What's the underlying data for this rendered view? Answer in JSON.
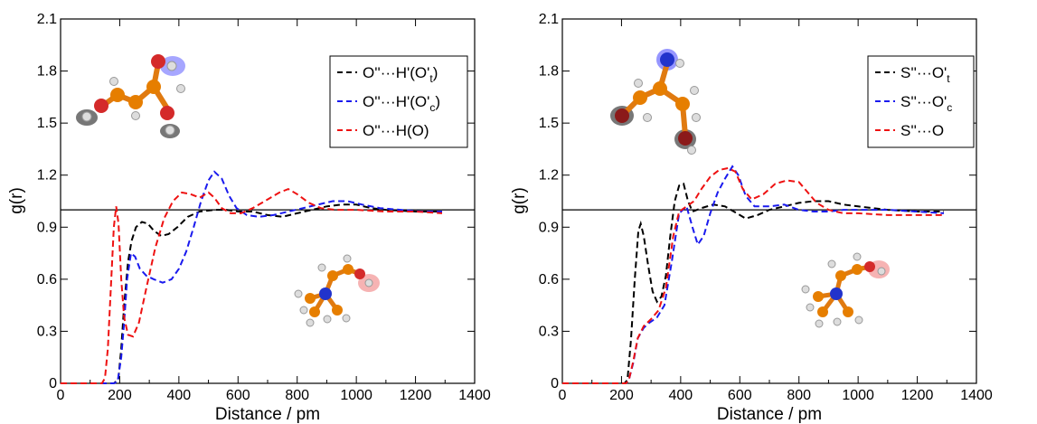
{
  "chart_data": [
    {
      "type": "line",
      "xlabel": "Distance / pm",
      "ylabel": "g(r)",
      "xlim": [
        0,
        1400
      ],
      "ylim": [
        0,
        2.1
      ],
      "xticks": [
        "0",
        "200",
        "400",
        "600",
        "800",
        "1000",
        "1200",
        "1400"
      ],
      "yticks": [
        "0",
        "0.3",
        "0.6",
        "0.9",
        "1.2",
        "1.5",
        "1.8",
        "2.1"
      ],
      "reference_line": 1.0,
      "legend_position": "top-right",
      "series": [
        {
          "name": "O''···H'(O't)",
          "legend": {
            "main": "O''···H'(O'",
            "sub": "t",
            "tail": ")"
          },
          "color": "#000000",
          "dash": "dashed",
          "points": [
            [
              0,
              0
            ],
            [
              180,
              0
            ],
            [
              195,
              0.02
            ],
            [
              205,
              0.2
            ],
            [
              215,
              0.45
            ],
            [
              228,
              0.7
            ],
            [
              240,
              0.82
            ],
            [
              255,
              0.9
            ],
            [
              275,
              0.93
            ],
            [
              295,
              0.92
            ],
            [
              315,
              0.88
            ],
            [
              340,
              0.85
            ],
            [
              365,
              0.86
            ],
            [
              395,
              0.9
            ],
            [
              430,
              0.96
            ],
            [
              470,
              0.99
            ],
            [
              520,
              1.0
            ],
            [
              560,
              1.0
            ],
            [
              600,
              0.99
            ],
            [
              650,
              0.99
            ],
            [
              700,
              0.97
            ],
            [
              750,
              0.96
            ],
            [
              800,
              0.98
            ],
            [
              850,
              1.0
            ],
            [
              900,
              1.02
            ],
            [
              950,
              1.03
            ],
            [
              1000,
              1.03
            ],
            [
              1050,
              1.01
            ],
            [
              1100,
              1.0
            ],
            [
              1200,
              0.99
            ],
            [
              1290,
              0.99
            ]
          ]
        },
        {
          "name": "O''···H'(O'c)",
          "legend": {
            "main": "O''···H'(O'",
            "sub": "c",
            "tail": ")"
          },
          "color": "#1a1aee",
          "dash": "dashed",
          "points": [
            [
              0,
              0
            ],
            [
              180,
              0
            ],
            [
              193,
              0.01
            ],
            [
              205,
              0.15
            ],
            [
              215,
              0.35
            ],
            [
              225,
              0.6
            ],
            [
              238,
              0.75
            ],
            [
              252,
              0.73
            ],
            [
              268,
              0.66
            ],
            [
              290,
              0.62
            ],
            [
              315,
              0.6
            ],
            [
              345,
              0.58
            ],
            [
              375,
              0.6
            ],
            [
              400,
              0.66
            ],
            [
              425,
              0.76
            ],
            [
              450,
              0.9
            ],
            [
              475,
              1.05
            ],
            [
              500,
              1.17
            ],
            [
              520,
              1.22
            ],
            [
              545,
              1.18
            ],
            [
              570,
              1.08
            ],
            [
              595,
              1.01
            ],
            [
              630,
              0.97
            ],
            [
              670,
              0.96
            ],
            [
              720,
              0.97
            ],
            [
              770,
              0.99
            ],
            [
              820,
              1.01
            ],
            [
              870,
              1.03
            ],
            [
              920,
              1.05
            ],
            [
              970,
              1.05
            ],
            [
              1020,
              1.03
            ],
            [
              1080,
              1.01
            ],
            [
              1150,
              1.0
            ],
            [
              1220,
              0.99
            ],
            [
              1290,
              0.99
            ]
          ]
        },
        {
          "name": "O''···H(O)",
          "legend": {
            "main": "O''···H(O)",
            "sub": "",
            "tail": ""
          },
          "color": "#ee1111",
          "dash": "dashed",
          "points": [
            [
              0,
              0
            ],
            [
              140,
              0
            ],
            [
              150,
              0.03
            ],
            [
              160,
              0.2
            ],
            [
              170,
              0.55
            ],
            [
              180,
              0.9
            ],
            [
              188,
              1.02
            ],
            [
              196,
              0.92
            ],
            [
              205,
              0.6
            ],
            [
              215,
              0.38
            ],
            [
              228,
              0.28
            ],
            [
              245,
              0.27
            ],
            [
              265,
              0.35
            ],
            [
              290,
              0.55
            ],
            [
              320,
              0.78
            ],
            [
              350,
              0.95
            ],
            [
              380,
              1.05
            ],
            [
              410,
              1.1
            ],
            [
              440,
              1.09
            ],
            [
              470,
              1.07
            ],
            [
              500,
              1.1
            ],
            [
              520,
              1.07
            ],
            [
              545,
              1.01
            ],
            [
              575,
              0.98
            ],
            [
              610,
              0.98
            ],
            [
              650,
              1.01
            ],
            [
              700,
              1.06
            ],
            [
              740,
              1.1
            ],
            [
              770,
              1.12
            ],
            [
              800,
              1.09
            ],
            [
              840,
              1.04
            ],
            [
              880,
              1.01
            ],
            [
              930,
              1.0
            ],
            [
              1000,
              1.0
            ],
            [
              1100,
              0.99
            ],
            [
              1200,
              0.99
            ],
            [
              1290,
              0.98
            ]
          ]
        }
      ]
    },
    {
      "type": "line",
      "xlabel": "Distance / pm",
      "ylabel": "g(r)",
      "xlim": [
        0,
        1400
      ],
      "ylim": [
        0,
        2.1
      ],
      "xticks": [
        "0",
        "200",
        "400",
        "600",
        "800",
        "1000",
        "1200",
        "1400"
      ],
      "yticks": [
        "0",
        "0.3",
        "0.6",
        "0.9",
        "1.2",
        "1.5",
        "1.8",
        "2.1"
      ],
      "reference_line": 1.0,
      "legend_position": "top-right",
      "series": [
        {
          "name": "S''···O't",
          "legend": {
            "main": "S''···O'",
            "sub": "t",
            "tail": ""
          },
          "color": "#000000",
          "dash": "dashed",
          "points": [
            [
              0,
              0
            ],
            [
              210,
              0
            ],
            [
              220,
              0.02
            ],
            [
              232,
              0.25
            ],
            [
              245,
              0.6
            ],
            [
              257,
              0.88
            ],
            [
              265,
              0.92
            ],
            [
              275,
              0.85
            ],
            [
              290,
              0.68
            ],
            [
              305,
              0.53
            ],
            [
              320,
              0.47
            ],
            [
              335,
              0.5
            ],
            [
              350,
              0.62
            ],
            [
              365,
              0.85
            ],
            [
              380,
              1.05
            ],
            [
              395,
              1.14
            ],
            [
              410,
              1.15
            ],
            [
              425,
              1.05
            ],
            [
              440,
              0.99
            ],
            [
              470,
              1.01
            ],
            [
              510,
              1.03
            ],
            [
              550,
              1.02
            ],
            [
              590,
              0.98
            ],
            [
              620,
              0.95
            ],
            [
              660,
              0.97
            ],
            [
              700,
              1.0
            ],
            [
              750,
              1.02
            ],
            [
              800,
              1.04
            ],
            [
              850,
              1.05
            ],
            [
              900,
              1.05
            ],
            [
              950,
              1.03
            ],
            [
              1000,
              1.02
            ],
            [
              1100,
              1.0
            ],
            [
              1200,
              0.99
            ],
            [
              1290,
              0.99
            ]
          ]
        },
        {
          "name": "S''···O'c",
          "legend": {
            "main": "S''···O'",
            "sub": "c",
            "tail": ""
          },
          "color": "#1a1aee",
          "dash": "dashed",
          "points": [
            [
              0,
              0
            ],
            [
              215,
              0
            ],
            [
              225,
              0.02
            ],
            [
              240,
              0.12
            ],
            [
              255,
              0.26
            ],
            [
              275,
              0.32
            ],
            [
              295,
              0.35
            ],
            [
              320,
              0.38
            ],
            [
              345,
              0.45
            ],
            [
              370,
              0.7
            ],
            [
              395,
              0.98
            ],
            [
              420,
              1.02
            ],
            [
              440,
              0.9
            ],
            [
              458,
              0.8
            ],
            [
              478,
              0.85
            ],
            [
              500,
              0.98
            ],
            [
              525,
              1.1
            ],
            [
              550,
              1.18
            ],
            [
              575,
              1.25
            ],
            [
              595,
              1.2
            ],
            [
              620,
              1.08
            ],
            [
              650,
              1.02
            ],
            [
              700,
              1.02
            ],
            [
              750,
              1.03
            ],
            [
              800,
              1.0
            ],
            [
              850,
              0.99
            ],
            [
              900,
              0.99
            ],
            [
              950,
              1.0
            ],
            [
              1000,
              1.0
            ],
            [
              1100,
              1.0
            ],
            [
              1200,
              0.99
            ],
            [
              1290,
              0.98
            ]
          ]
        },
        {
          "name": "S''···O",
          "legend": {
            "main": "S''···O",
            "sub": "",
            "tail": ""
          },
          "color": "#ee1111",
          "dash": "dashed",
          "points": [
            [
              0,
              0
            ],
            [
              215,
              0
            ],
            [
              225,
              0.02
            ],
            [
              240,
              0.13
            ],
            [
              255,
              0.26
            ],
            [
              275,
              0.33
            ],
            [
              300,
              0.37
            ],
            [
              325,
              0.42
            ],
            [
              350,
              0.55
            ],
            [
              375,
              0.85
            ],
            [
              395,
              0.99
            ],
            [
              420,
              1.02
            ],
            [
              445,
              1.05
            ],
            [
              470,
              1.12
            ],
            [
              500,
              1.19
            ],
            [
              530,
              1.23
            ],
            [
              560,
              1.24
            ],
            [
              585,
              1.22
            ],
            [
              610,
              1.12
            ],
            [
              640,
              1.06
            ],
            [
              680,
              1.09
            ],
            [
              720,
              1.15
            ],
            [
              760,
              1.17
            ],
            [
              800,
              1.16
            ],
            [
              830,
              1.1
            ],
            [
              860,
              1.04
            ],
            [
              900,
              1.0
            ],
            [
              950,
              0.98
            ],
            [
              1000,
              0.98
            ],
            [
              1100,
              0.97
            ],
            [
              1200,
              0.97
            ],
            [
              1290,
              0.97
            ]
          ]
        }
      ]
    }
  ]
}
